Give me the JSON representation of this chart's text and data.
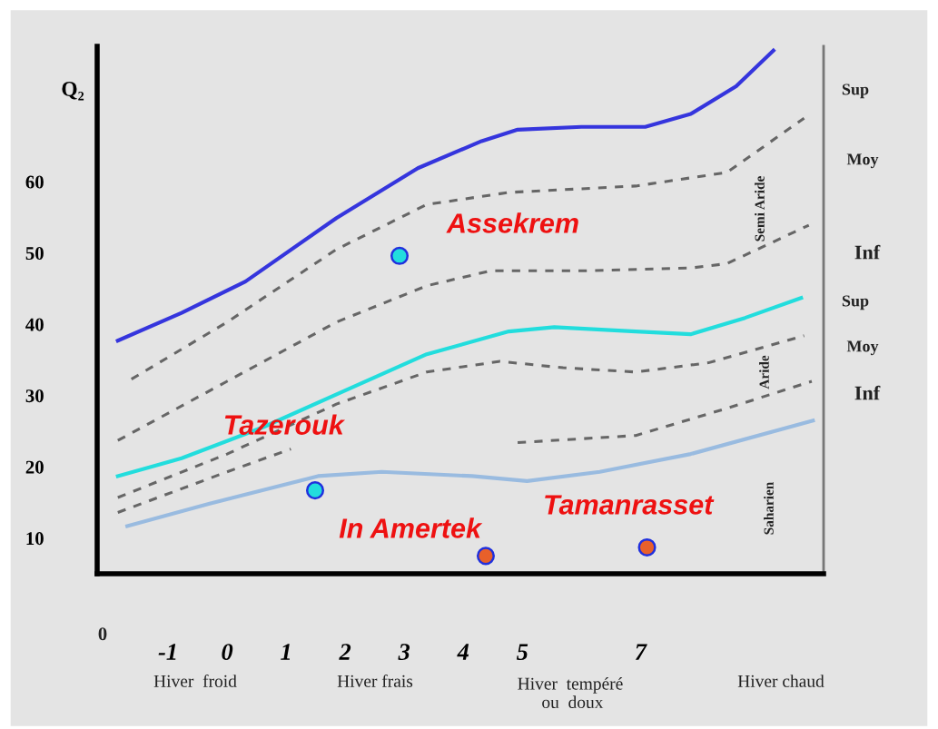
{
  "chart_data": {
    "type": "line",
    "ylabel": "Q₂",
    "xlim": [
      -2.2,
      10.1
    ],
    "ylim": [
      5,
      79
    ],
    "xticks": [
      -1,
      0,
      1,
      2,
      3,
      4,
      5,
      7
    ],
    "yticks": [
      10,
      20,
      30,
      40,
      50,
      60
    ],
    "grid": false,
    "series": [
      {
        "color": "#3535dd",
        "line_style": "solid",
        "x": [
          -1.85,
          -0.77,
          0.31,
          1.85,
          3.23,
          4.31,
          4.92,
          6.0,
          7.08,
          7.85,
          8.62,
          9.25
        ],
        "values": [
          37.7,
          41.6,
          46.0,
          54.9,
          61.9,
          65.7,
          67.3,
          67.7,
          67.7,
          69.5,
          73.4,
          78.4
        ]
      },
      {
        "color": "#666666",
        "line_style": "dashed",
        "x": [
          -1.62,
          0,
          1.85,
          3.38,
          4.77,
          6.92,
          8.46,
          9.77
        ],
        "values": [
          32.3,
          40.3,
          50.5,
          56.8,
          58.5,
          59.4,
          61.3,
          68.9
        ]
      },
      {
        "color": "#666666",
        "line_style": "dashed",
        "x": [
          -1.85,
          0,
          1.85,
          3.38,
          4.46,
          6.0,
          7.85,
          8.46,
          9.85
        ],
        "values": [
          23.7,
          32.0,
          40.3,
          45.4,
          47.5,
          47.5,
          47.9,
          48.5,
          53.9
        ]
      },
      {
        "color": "#22dddd",
        "line_style": "solid",
        "x": [
          -1.85,
          -0.77,
          0.62,
          2.0,
          3.38,
          4.77,
          5.54,
          6.92,
          7.85,
          8.77,
          9.72
        ],
        "values": [
          18.7,
          21.2,
          25.6,
          30.7,
          35.8,
          39.0,
          39.6,
          39.0,
          38.6,
          40.9,
          43.7
        ]
      },
      {
        "color": "#666666",
        "line_style": "dashed",
        "x": [
          -1.85,
          0,
          1.85,
          3.38,
          4.62,
          5.69,
          6.92,
          8.15,
          9.77
        ],
        "values": [
          15.7,
          21.8,
          28.8,
          33.3,
          34.8,
          33.9,
          33.3,
          34.6,
          38.4
        ]
      },
      {
        "color": "#666666",
        "line_style": "dashed",
        "x": [
          -1.85,
          0,
          1.08,
          3.0,
          4.92,
          6.92,
          8.46,
          9.9
        ],
        "values": [
          13.6,
          19.3,
          22.5,
          null,
          23.4,
          24.4,
          28.2,
          32.0
        ]
      },
      {
        "color": "#99bbe0",
        "line_style": "solid",
        "x": [
          -1.69,
          -0.31,
          1.54,
          2.62,
          4.15,
          5.08,
          6.31,
          7.85,
          9.92
        ],
        "values": [
          11.7,
          14.8,
          18.7,
          19.3,
          18.7,
          18.0,
          19.3,
          21.8,
          26.5
        ]
      },
      {
        "type": "scatter",
        "name": "Assekrem",
        "color": "#22dddd",
        "marker": "circle",
        "x": [
          2.92
        ],
        "values": [
          49.6
        ]
      },
      {
        "type": "scatter",
        "name": "Tazerouk",
        "color": "#22dddd",
        "marker": "circle",
        "x": [
          1.49
        ],
        "values": [
          16.7
        ]
      },
      {
        "type": "scatter",
        "name": "In Amertek",
        "color": "#e8602a",
        "marker": "circle",
        "x": [
          4.38
        ],
        "values": [
          7.5
        ]
      },
      {
        "type": "scatter",
        "name": "Tamanrasset",
        "color": "#e8602a",
        "marker": "circle",
        "x": [
          7.11
        ],
        "values": [
          8.7
        ]
      }
    ],
    "annotations": [
      "Sup",
      "Moy",
      "Inf",
      "Sup",
      "Moy",
      "Inf",
      "Semi Aride",
      "Aride",
      "Saharien",
      "0",
      "Hiver  froid",
      "Hiver frais",
      "Hiver  tempéré\n ou  doux",
      "Hiver chaud"
    ]
  }
}
